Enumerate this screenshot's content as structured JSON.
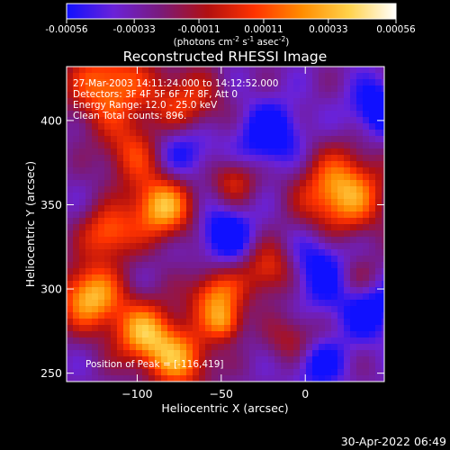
{
  "colorbar": {
    "ticks": [
      {
        "value": -0.00056,
        "label": "-0.00056"
      },
      {
        "value": -0.00033,
        "label": "-0.00033"
      },
      {
        "value": -0.00011,
        "label": "-0.00011"
      },
      {
        "value": 0.00011,
        "label": "0.00011"
      },
      {
        "value": 0.00033,
        "label": "0.00033"
      },
      {
        "value": 0.00056,
        "label": "0.00056"
      }
    ],
    "units_prefix": "(photons cm",
    "units_exp1": "-2",
    "units_mid": " s",
    "units_exp2": "-1",
    "units_mid2": " asec",
    "units_exp3": "-2",
    "units_suffix": ")",
    "palette": [
      "#1010ff",
      "#6a22d8",
      "#7a1a7a",
      "#b21010",
      "#ff3300",
      "#ff8c00",
      "#ffd24a",
      "#ffffff"
    ]
  },
  "chart_data": {
    "type": "heatmap",
    "title": "Reconstructed RHESSI Image",
    "xlabel": "Heliocentric X (arcsec)",
    "ylabel": "Heliocentric Y (arcsec)",
    "xlim": [
      -142,
      47
    ],
    "ylim": [
      245,
      432
    ],
    "x_ticks": [
      {
        "value": -100,
        "label": "−100"
      },
      {
        "value": -50,
        "label": "−50"
      },
      {
        "value": 0,
        "label": "0"
      }
    ],
    "y_ticks": [
      {
        "value": 250,
        "label": "250"
      },
      {
        "value": 300,
        "label": "300"
      },
      {
        "value": 350,
        "label": "350"
      },
      {
        "value": 400,
        "label": "400"
      }
    ],
    "annotations": [
      "27-Mar-2003 14:11:24.000 to 14:12:52.000",
      "Detectors: 3F 4F 5F 6F 7F 8F, Att 0",
      "Energy Range: 12.0 - 25.0 keV",
      "Clean    Total counts: 896."
    ],
    "peak_label": "Position of Peak = [-116,419]",
    "peak": {
      "x": -116,
      "y": 419
    }
  },
  "timestamp": "30-Apr-2022 06:49"
}
